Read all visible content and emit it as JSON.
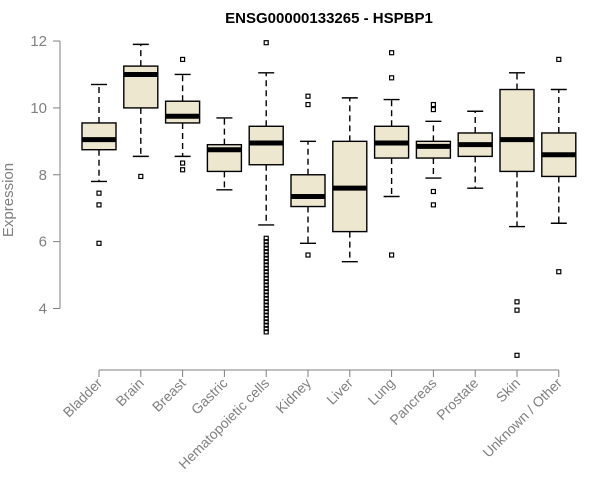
{
  "chart_data": {
    "type": "boxplot",
    "title": "ENSG00000133265 - HSPBP1",
    "ylabel": "Expression",
    "xlabel": "",
    "ylim": [
      2.4,
      12.3
    ],
    "yticks": [
      4,
      6,
      8,
      10,
      12
    ],
    "categories": [
      "Bladder",
      "Brain",
      "Breast",
      "Gastric",
      "Hematopoietic cells",
      "Kidney",
      "Liver",
      "Lung",
      "Pancreas",
      "Prostate",
      "Skin",
      "Unknown / Other"
    ],
    "boxes": [
      {
        "whisker_low": 7.8,
        "q1": 8.75,
        "median": 9.05,
        "q3": 9.55,
        "whisker_high": 10.7,
        "outliers": [
          5.95,
          7.1,
          7.45
        ]
      },
      {
        "whisker_low": 8.55,
        "q1": 10.0,
        "median": 11.0,
        "q3": 11.25,
        "whisker_high": 11.9,
        "outliers": [
          7.95
        ]
      },
      {
        "whisker_low": 8.55,
        "q1": 9.55,
        "median": 9.75,
        "q3": 10.2,
        "whisker_high": 11.0,
        "outliers": [
          8.15,
          8.35,
          11.45
        ]
      },
      {
        "whisker_low": 7.55,
        "q1": 8.1,
        "median": 8.75,
        "q3": 8.9,
        "whisker_high": 9.7,
        "outliers": []
      },
      {
        "whisker_low": 6.5,
        "q1": 8.3,
        "median": 8.95,
        "q3": 9.45,
        "whisker_high": 11.05,
        "outliers": [
          11.95,
          6.1,
          6.0,
          5.9,
          5.8,
          5.7,
          5.6,
          5.5,
          5.4,
          5.3,
          5.2,
          5.1,
          5.0,
          4.9,
          4.8,
          4.7,
          4.6,
          4.5,
          4.4,
          4.3,
          4.2,
          4.1,
          4.0,
          3.9,
          3.8,
          3.7,
          3.6,
          3.5,
          3.4,
          3.3
        ]
      },
      {
        "whisker_low": 5.95,
        "q1": 7.05,
        "median": 7.35,
        "q3": 8.0,
        "whisker_high": 9.0,
        "outliers": [
          5.6,
          10.1,
          10.35
        ]
      },
      {
        "whisker_low": 5.4,
        "q1": 6.3,
        "median": 7.6,
        "q3": 9.0,
        "whisker_high": 10.3,
        "outliers": []
      },
      {
        "whisker_low": 7.35,
        "q1": 8.5,
        "median": 8.95,
        "q3": 9.45,
        "whisker_high": 10.25,
        "outliers": [
          5.6,
          10.9,
          11.65
        ]
      },
      {
        "whisker_low": 7.9,
        "q1": 8.5,
        "median": 8.85,
        "q3": 9.0,
        "whisker_high": 9.6,
        "outliers": [
          7.1,
          7.5,
          9.95,
          10.1
        ]
      },
      {
        "whisker_low": 7.6,
        "q1": 8.55,
        "median": 8.9,
        "q3": 9.25,
        "whisker_high": 9.9,
        "outliers": []
      },
      {
        "whisker_low": 6.45,
        "q1": 8.1,
        "median": 9.05,
        "q3": 10.55,
        "whisker_high": 11.05,
        "outliers": [
          2.6,
          3.95,
          4.2
        ]
      },
      {
        "whisker_low": 6.55,
        "q1": 7.95,
        "median": 8.6,
        "q3": 9.25,
        "whisker_high": 10.55,
        "outliers": [
          5.1,
          11.45
        ]
      }
    ]
  }
}
